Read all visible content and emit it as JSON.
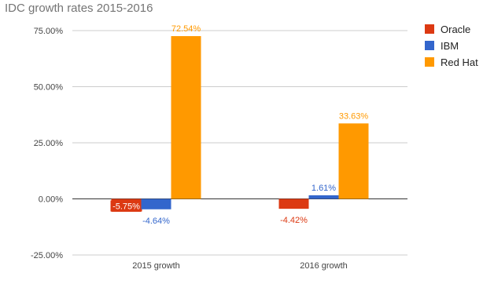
{
  "chart_data": {
    "type": "bar",
    "title": "IDC growth rates 2015-2016",
    "categories": [
      "2015 growth",
      "2016 growth"
    ],
    "series": [
      {
        "name": "Oracle",
        "color": "#dc3912",
        "values": [
          -5.75,
          -4.42
        ],
        "labels": [
          "-5.75%",
          "-4.42%"
        ]
      },
      {
        "name": "IBM",
        "color": "#3366cc",
        "values": [
          -4.64,
          1.61
        ],
        "labels": [
          "-4.64%",
          "1.61%"
        ]
      },
      {
        "name": "Red Hat",
        "color": "#ff9900",
        "values": [
          72.54,
          33.63
        ],
        "labels": [
          "72.54%",
          "33.63%"
        ]
      }
    ],
    "yticks": [
      75,
      50,
      25,
      0,
      -25
    ],
    "ytick_labels": [
      "75.00%",
      "50.00%",
      "25.00%",
      "0.00%",
      "-25.00%"
    ],
    "ylim": [
      -25,
      75
    ],
    "grid": true,
    "legend": "right"
  }
}
